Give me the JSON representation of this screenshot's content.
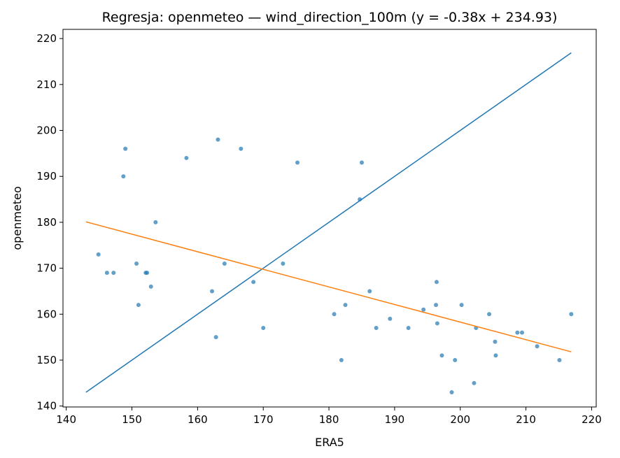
{
  "chart_data": {
    "type": "scatter",
    "title": "Regresja: openmeteo — wind_direction_100m (y = -0.38x + 234.93)",
    "xlabel": "ERA5",
    "ylabel": "openmeteo",
    "xlim": [
      139.5,
      220.7
    ],
    "ylim": [
      139.8,
      222.0
    ],
    "xticks": [
      140,
      150,
      160,
      170,
      180,
      190,
      200,
      210,
      220
    ],
    "yticks": [
      140,
      150,
      160,
      170,
      180,
      190,
      200,
      210,
      220
    ],
    "grid": false,
    "series": [
      {
        "type": "scatter",
        "color": "#1f77b4",
        "points": [
          [
            144.9,
            173
          ],
          [
            146.2,
            169
          ],
          [
            147.2,
            169
          ],
          [
            148.7,
            190
          ],
          [
            149.0,
            196
          ],
          [
            150.7,
            171
          ],
          [
            151.0,
            162
          ],
          [
            152.1,
            169
          ],
          [
            152.3,
            169
          ],
          [
            152.9,
            166
          ],
          [
            153.6,
            180
          ],
          [
            158.3,
            194
          ],
          [
            162.2,
            165
          ],
          [
            162.8,
            155
          ],
          [
            163.1,
            198
          ],
          [
            164.1,
            171
          ],
          [
            166.6,
            196
          ],
          [
            168.5,
            167
          ],
          [
            170.0,
            157
          ],
          [
            173.0,
            171
          ],
          [
            175.2,
            193
          ],
          [
            180.8,
            160
          ],
          [
            181.9,
            150
          ],
          [
            182.5,
            162
          ],
          [
            184.7,
            185
          ],
          [
            185.0,
            193
          ],
          [
            186.2,
            165
          ],
          [
            187.2,
            157
          ],
          [
            189.3,
            159
          ],
          [
            192.1,
            157
          ],
          [
            194.4,
            161
          ],
          [
            196.3,
            162
          ],
          [
            196.4,
            167
          ],
          [
            196.5,
            158
          ],
          [
            197.2,
            151
          ],
          [
            198.7,
            143
          ],
          [
            199.2,
            150
          ],
          [
            200.2,
            162
          ],
          [
            202.1,
            145
          ],
          [
            202.4,
            157
          ],
          [
            204.4,
            160
          ],
          [
            205.3,
            154
          ],
          [
            205.4,
            151
          ],
          [
            208.7,
            156
          ],
          [
            209.4,
            156
          ],
          [
            211.7,
            153
          ],
          [
            215.1,
            150
          ],
          [
            216.9,
            160
          ]
        ]
      },
      {
        "type": "line",
        "color": "#1f77b4",
        "points": [
          [
            143.0,
            143.0
          ],
          [
            216.9,
            216.9
          ]
        ]
      },
      {
        "type": "line",
        "color": "#ff7f0e",
        "points": [
          [
            143.0,
            180.1
          ],
          [
            216.9,
            151.8
          ]
        ]
      }
    ]
  }
}
